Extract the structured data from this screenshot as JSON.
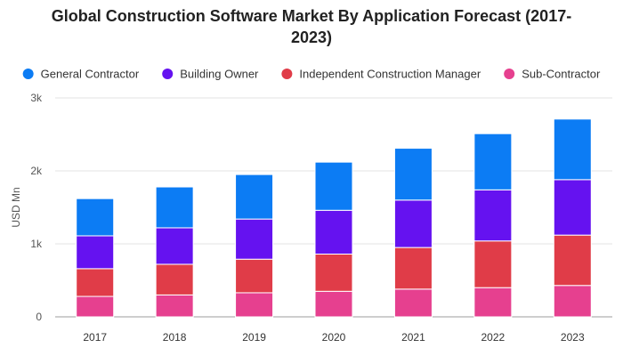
{
  "chart_data": {
    "type": "bar",
    "stacked": true,
    "title_lines": [
      "Global Construction Software Market By Application Forecast (2017-",
      "2023)"
    ],
    "ylabel": "USD Mn",
    "xlabel": "",
    "legend_position": "top",
    "ylim": [
      0,
      3000
    ],
    "y_ticks": [
      {
        "value": 0,
        "label": "0"
      },
      {
        "value": 1000,
        "label": "1k"
      },
      {
        "value": 2000,
        "label": "2k"
      },
      {
        "value": 3000,
        "label": "3k"
      }
    ],
    "grid": true,
    "categories": [
      "2017",
      "2018",
      "2019",
      "2020",
      "2021",
      "2022",
      "2023"
    ],
    "series": [
      {
        "name": "Sub-Contractor",
        "color": "#e6408f",
        "values": [
          280,
          300,
          330,
          350,
          380,
          400,
          430
        ]
      },
      {
        "name": "Independent Construction Manager",
        "color": "#e03c48",
        "values": [
          380,
          420,
          460,
          510,
          570,
          640,
          690
        ]
      },
      {
        "name": "Building Owner",
        "color": "#6512f0",
        "values": [
          450,
          500,
          550,
          600,
          650,
          700,
          760
        ]
      },
      {
        "name": "General Contractor",
        "color": "#0c7cf4",
        "values": [
          510,
          560,
          610,
          660,
          710,
          770,
          830
        ]
      }
    ],
    "legend_order": [
      "General Contractor",
      "Building Owner",
      "Independent Construction Manager",
      "Sub-Contractor"
    ]
  }
}
